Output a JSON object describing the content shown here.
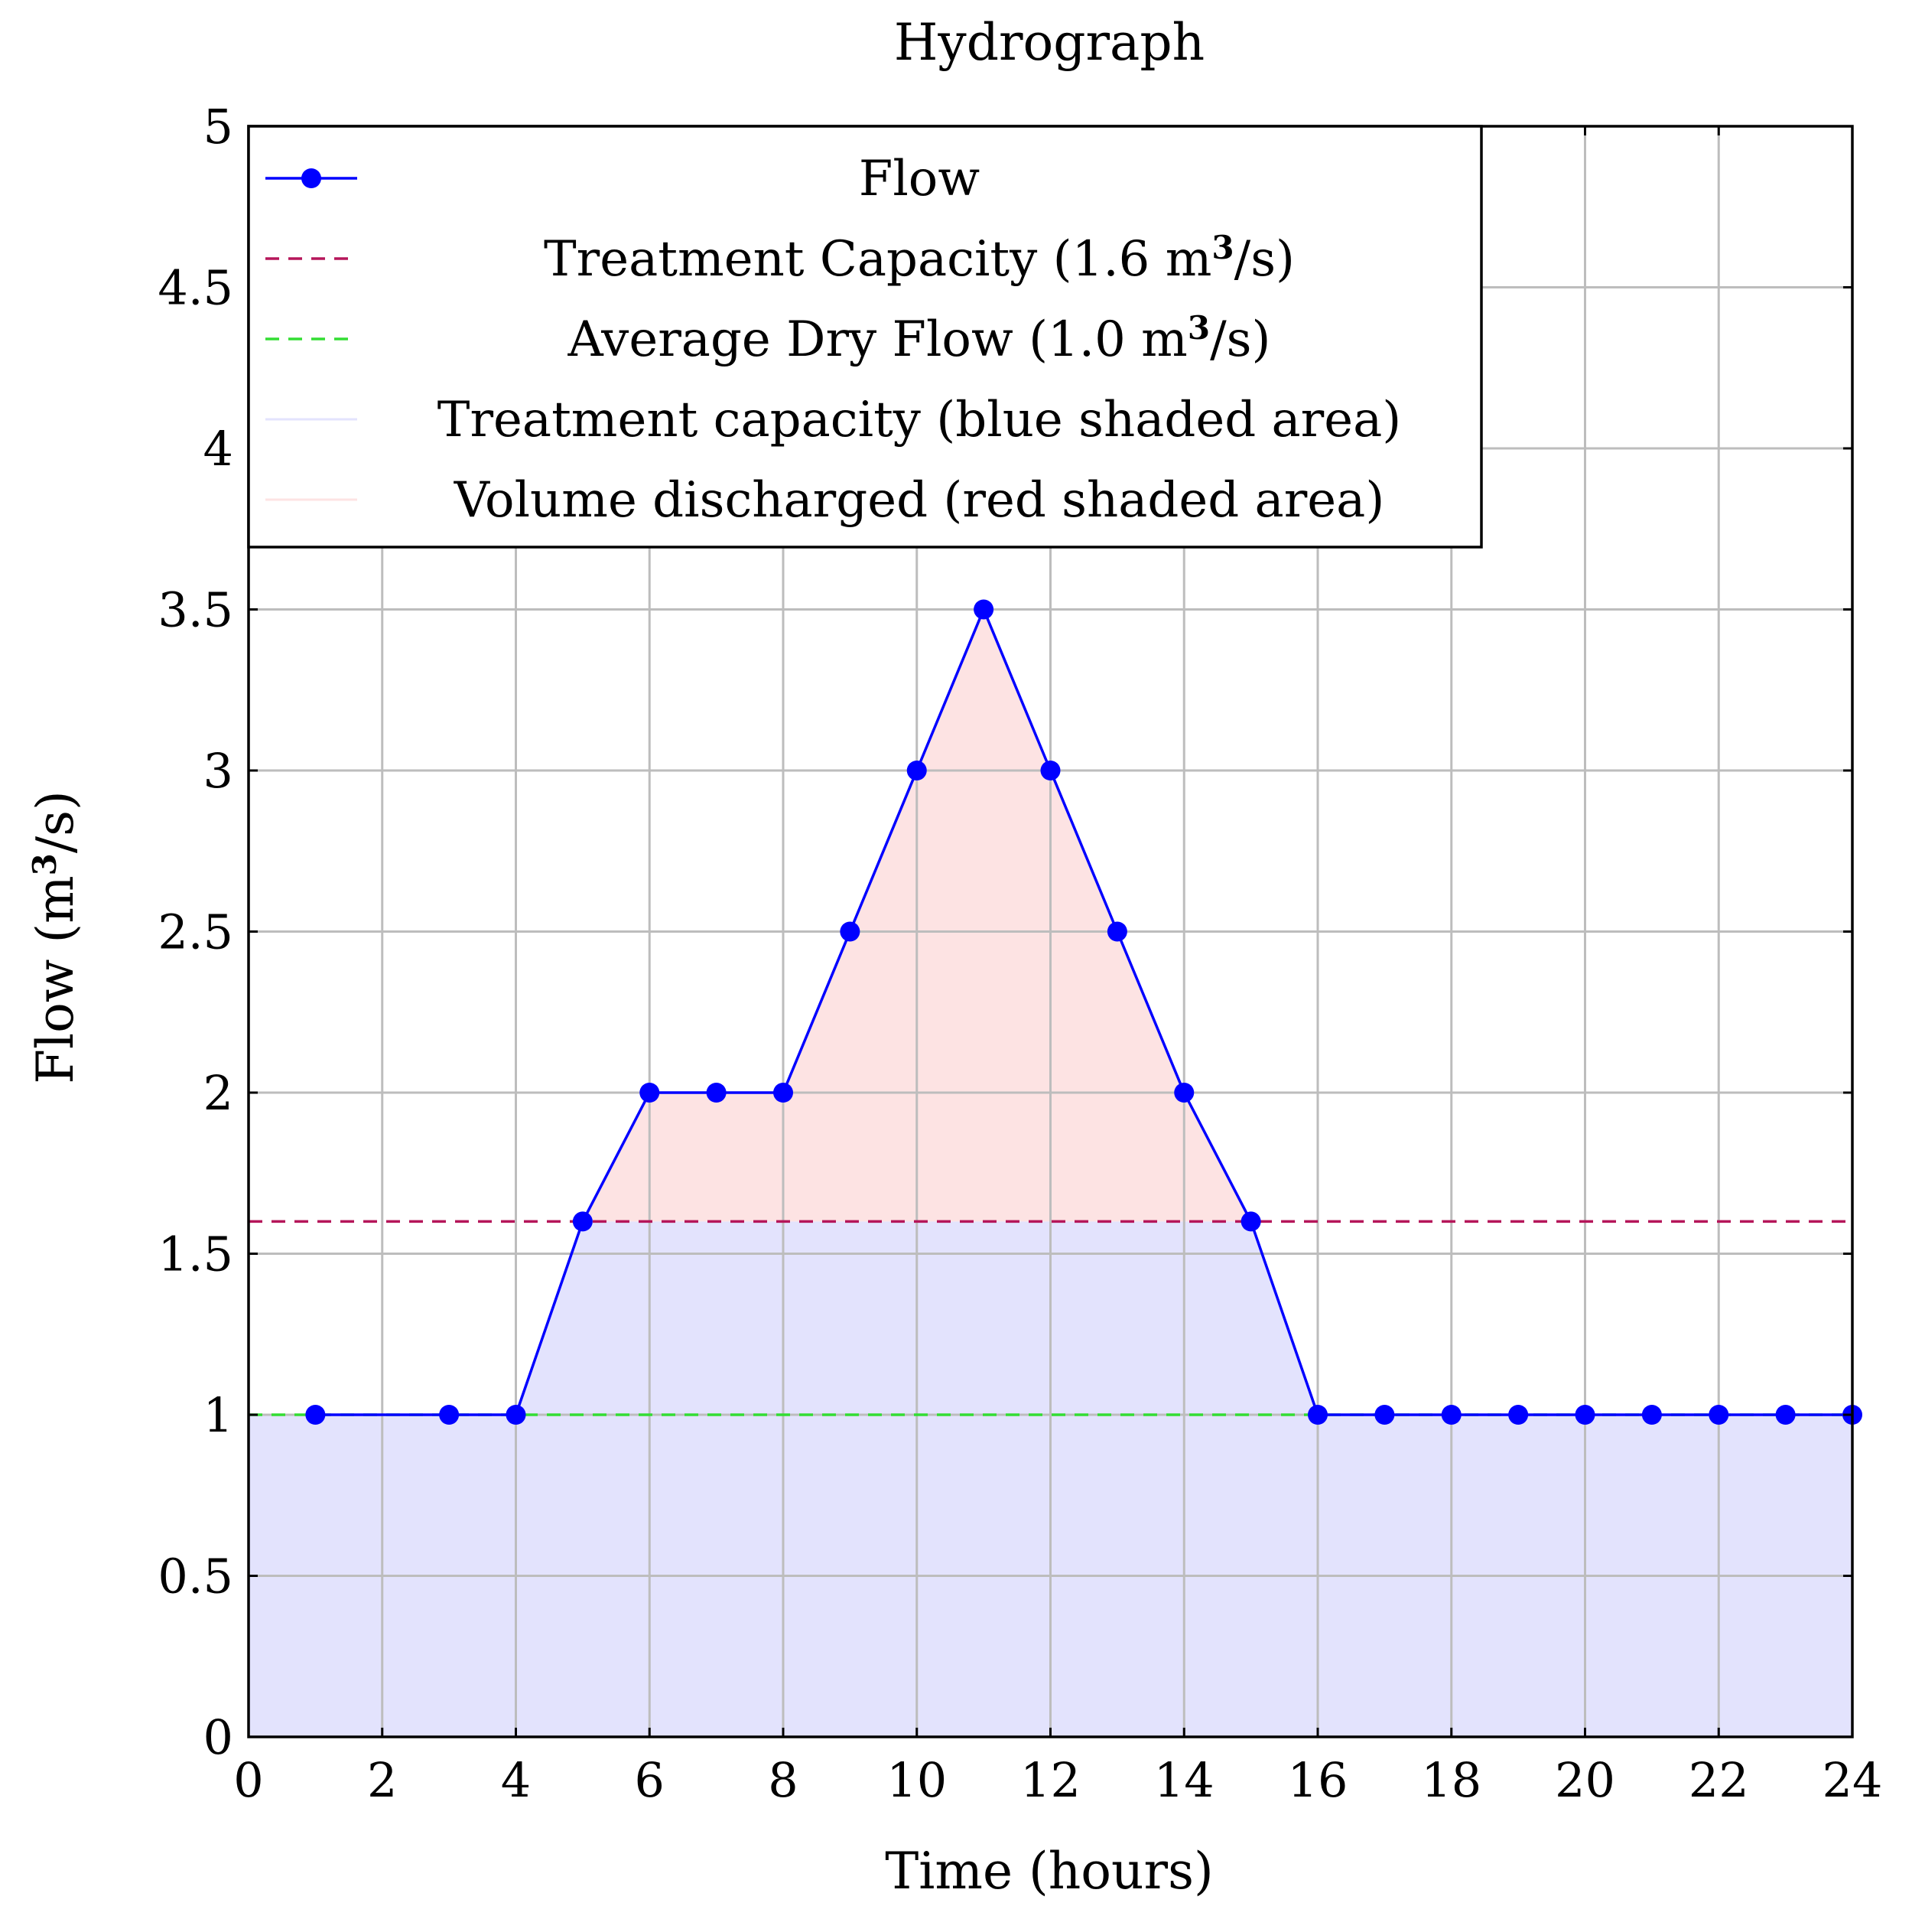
{
  "chart_data": {
    "type": "line",
    "title": "Hydrograph",
    "xlabel": "Time (hours)",
    "ylabel": "Flow (m³/s)",
    "xlim": [
      0,
      24
    ],
    "ylim": [
      0,
      5
    ],
    "xticks": [
      "0",
      "2",
      "4",
      "6",
      "8",
      "10",
      "12",
      "14",
      "16",
      "18",
      "20",
      "22",
      "24"
    ],
    "yticks": [
      "0",
      "0.5",
      "1",
      "1.5",
      "2",
      "2.5",
      "3",
      "3.5",
      "4",
      "4.5",
      "5"
    ],
    "grid": true,
    "legend_position": "top-left",
    "series": [
      {
        "name": "Flow",
        "color": "#0000ff",
        "style": "solid-with-markers",
        "x": [
          1,
          3,
          4,
          5,
          6,
          7,
          8,
          9,
          10,
          11,
          12,
          13,
          14,
          15,
          16,
          17,
          18,
          19,
          20,
          21,
          22,
          23,
          24
        ],
        "y": [
          1,
          1,
          1,
          1.6,
          2,
          2,
          2,
          2.5,
          3,
          3.5,
          3,
          2.5,
          2,
          1.6,
          1,
          1,
          1,
          1,
          1,
          1,
          1,
          1,
          1
        ]
      },
      {
        "name": "Treatment Capacity (1.6 m³/s)",
        "color": "#b5165a",
        "style": "dashed",
        "y_const": 1.6
      },
      {
        "name": "Average Dry Flow (1.0 m³/s)",
        "color": "#33dd33",
        "style": "dashed",
        "y_const": 1.0
      },
      {
        "name": "Treatment capacity (blue shaded area)",
        "color": "#e3e3fd",
        "style": "area",
        "description_role": "flow clipped at 1.6"
      },
      {
        "name": "Volume discharged (red shaded area)",
        "color": "#fde3e3",
        "style": "area",
        "description_role": "flow above 1.6"
      }
    ]
  }
}
